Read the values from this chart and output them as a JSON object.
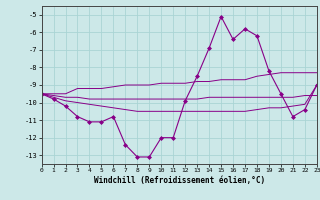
{
  "xlabel": "Windchill (Refroidissement éolien,°C)",
  "background_color": "#cce8e8",
  "grid_color": "#aad4d4",
  "line_color": "#880088",
  "x_values": [
    0,
    1,
    2,
    3,
    4,
    5,
    6,
    7,
    8,
    9,
    10,
    11,
    12,
    13,
    14,
    15,
    16,
    17,
    18,
    19,
    20,
    21,
    22,
    23
  ],
  "y_main": [
    -9.5,
    -9.8,
    -10.2,
    -10.8,
    -11.1,
    -11.1,
    -10.8,
    -12.4,
    -13.1,
    -13.1,
    -12.0,
    -12.0,
    -9.9,
    -8.5,
    -6.9,
    -5.1,
    -6.4,
    -5.8,
    -6.2,
    -8.2,
    -9.5,
    -10.8,
    -10.4,
    -9.0
  ],
  "y_line2": [
    -9.5,
    -9.5,
    -9.5,
    -9.2,
    -9.2,
    -9.2,
    -9.1,
    -9.0,
    -9.0,
    -9.0,
    -8.9,
    -8.9,
    -8.9,
    -8.8,
    -8.8,
    -8.7,
    -8.7,
    -8.7,
    -8.5,
    -8.4,
    -8.3,
    -8.3,
    -8.3,
    -8.3
  ],
  "y_line3": [
    -9.5,
    -9.6,
    -9.7,
    -9.7,
    -9.8,
    -9.8,
    -9.8,
    -9.8,
    -9.8,
    -9.8,
    -9.8,
    -9.8,
    -9.8,
    -9.8,
    -9.7,
    -9.7,
    -9.7,
    -9.7,
    -9.7,
    -9.7,
    -9.7,
    -9.7,
    -9.6,
    -9.6
  ],
  "y_line4": [
    -9.5,
    -9.7,
    -9.9,
    -10.0,
    -10.1,
    -10.2,
    -10.3,
    -10.4,
    -10.5,
    -10.5,
    -10.5,
    -10.5,
    -10.5,
    -10.5,
    -10.5,
    -10.5,
    -10.5,
    -10.5,
    -10.4,
    -10.3,
    -10.3,
    -10.2,
    -10.1,
    -9.0
  ],
  "ylim": [
    -13.5,
    -4.5
  ],
  "xlim": [
    0,
    23
  ],
  "yticks": [
    -13,
    -12,
    -11,
    -10,
    -9,
    -8,
    -7,
    -6,
    -5
  ],
  "xticks": [
    0,
    1,
    2,
    3,
    4,
    5,
    6,
    7,
    8,
    9,
    10,
    11,
    12,
    13,
    14,
    15,
    16,
    17,
    18,
    19,
    20,
    21,
    22,
    23
  ]
}
